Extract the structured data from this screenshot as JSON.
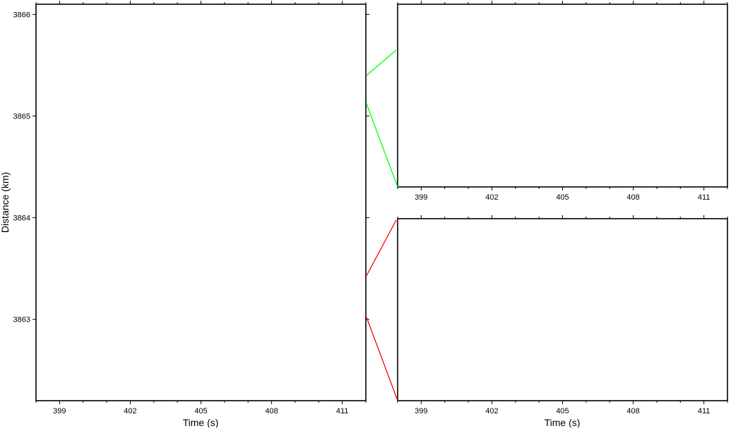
{
  "chart_data": [
    {
      "type": "line",
      "panel": "main",
      "xlabel": "Time (s)",
      "ylabel": "Distance (km)",
      "xlim": [
        398,
        412
      ],
      "ylim": [
        3862.2,
        3866.1
      ],
      "xticks": [
        399,
        402,
        405,
        408,
        411
      ],
      "yticks": [
        3863,
        3864,
        3865,
        3866
      ],
      "grid": false,
      "series": []
    },
    {
      "type": "line",
      "panel": "inset-top",
      "xlabel": "",
      "xlim": [
        398,
        412
      ],
      "ylim": [
        3865.12,
        3865.4
      ],
      "xticks": [
        399,
        402,
        405,
        408,
        411
      ],
      "connector_color": "#00ff00",
      "grid": false,
      "series": []
    },
    {
      "type": "line",
      "panel": "inset-bottom",
      "xlabel": "Time (s)",
      "xlim": [
        398,
        412
      ],
      "ylim": [
        3863.02,
        3863.43
      ],
      "xticks": [
        399,
        402,
        405,
        408,
        411
      ],
      "connector_color": "#ff0000",
      "grid": false,
      "series": []
    }
  ]
}
